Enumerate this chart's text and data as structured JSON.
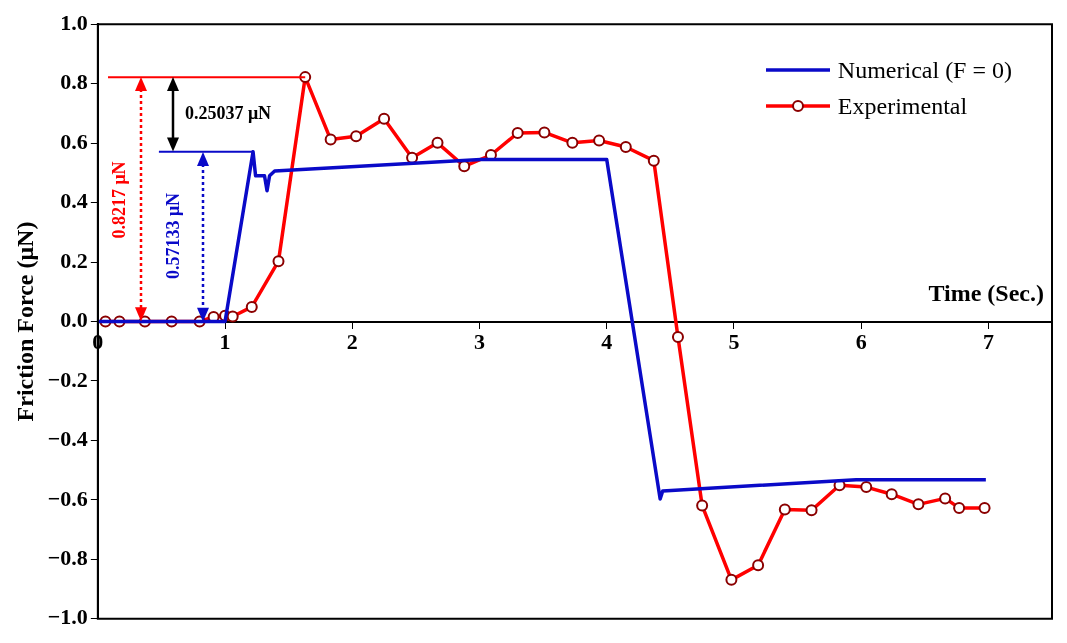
{
  "chart_data": {
    "type": "line",
    "xlabel": "Time (Sec.)",
    "ylabel": "Friction Force (μN)",
    "xlim": [
      0,
      7.5
    ],
    "xticks": [
      0,
      1,
      2,
      3,
      4,
      5,
      6,
      7
    ],
    "ylim": [
      -1.0,
      1.0
    ],
    "yticks": [
      {
        "value": -1.0,
        "label": "−1.0"
      },
      {
        "value": -0.8,
        "label": "−0.8"
      },
      {
        "value": -0.6,
        "label": "−0.6"
      },
      {
        "value": -0.4,
        "label": "−0.4"
      },
      {
        "value": -0.2,
        "label": "−0.2"
      },
      {
        "value": 0,
        "label": "0.0"
      },
      {
        "value": 0.2,
        "label": "0.2"
      },
      {
        "value": 0.4,
        "label": "0.4"
      },
      {
        "value": 0.6,
        "label": "0.6"
      },
      {
        "value": 0.8,
        "label": "0.8"
      },
      {
        "value": 1.0,
        "label": "1.0"
      }
    ],
    "grid": false,
    "legend": "top right",
    "series": [
      {
        "name": "Numerical (F = 0)",
        "color": "#0a0ac8",
        "marker": "none",
        "x": [
          0,
          1.0,
          1.22,
          1.24,
          1.31,
          1.33,
          1.35,
          1.39,
          3.01,
          4.0,
          4.42,
          4.44,
          5.96,
          6.98
        ],
        "values": [
          0,
          0,
          0.571,
          0.49,
          0.49,
          0.44,
          0.49,
          0.506,
          0.545,
          0.545,
          -0.597,
          -0.57,
          -0.532,
          -0.532
        ]
      },
      {
        "name": "Experimental",
        "color": "#ff0000",
        "marker": "circle",
        "x": [
          0.06,
          0.17,
          0.37,
          0.58,
          0.8,
          0.91,
          1.0,
          1.06,
          1.21,
          1.42,
          1.63,
          1.83,
          2.03,
          2.25,
          2.47,
          2.67,
          2.88,
          3.09,
          3.3,
          3.51,
          3.73,
          3.94,
          4.15,
          4.37,
          4.56,
          4.75,
          4.98,
          5.19,
          5.4,
          5.61,
          5.83,
          6.04,
          6.24,
          6.45,
          6.66,
          6.77,
          6.97
        ],
        "values": [
          0,
          0,
          0,
          0,
          0,
          0.015,
          0.019,
          0.017,
          0.049,
          0.203,
          0.822,
          0.612,
          0.623,
          0.682,
          0.551,
          0.601,
          0.522,
          0.56,
          0.634,
          0.636,
          0.601,
          0.609,
          0.587,
          0.541,
          -0.052,
          -0.619,
          -0.869,
          -0.82,
          -0.632,
          -0.635,
          -0.551,
          -0.557,
          -0.581,
          -0.615,
          -0.595,
          -0.627,
          -0.627
        ]
      }
    ],
    "ref_lines": [
      {
        "axis": "y",
        "value": 0.8217,
        "color": "#ff0000"
      },
      {
        "axis": "y",
        "value": 0.57133,
        "color": "#0a0ac8"
      }
    ],
    "annotations": [
      "0.8217 μN",
      "0.57133 μN",
      "0.25037 μN"
    ]
  }
}
